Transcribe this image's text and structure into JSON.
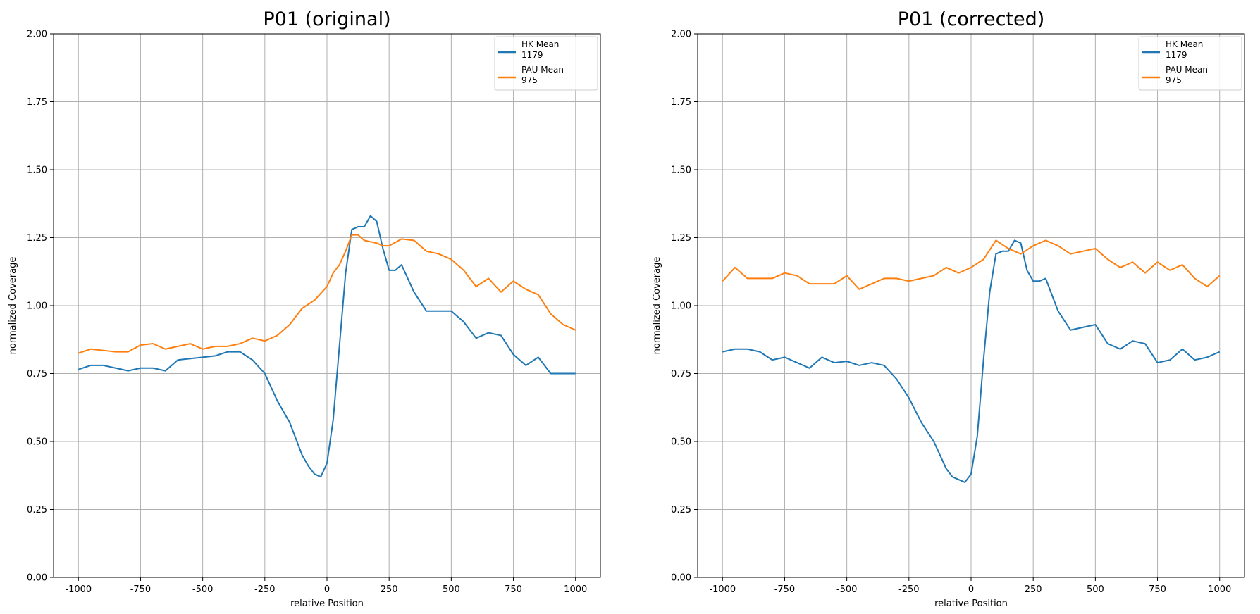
{
  "chart_data": [
    {
      "type": "line",
      "title": "P01 (original)",
      "xlabel": "relative Position",
      "ylabel": "normalized Coverage",
      "xlim": [
        -1100,
        1100
      ],
      "ylim": [
        0,
        2
      ],
      "xticks": [
        -1000,
        -750,
        -500,
        -250,
        0,
        250,
        500,
        750,
        1000
      ],
      "xtick_labels": [
        "-1000",
        "-750",
        "-500",
        "-250",
        "0",
        "250",
        "500",
        "750",
        "1000"
      ],
      "yticks": [
        0,
        0.25,
        0.5,
        0.75,
        1.0,
        1.25,
        1.5,
        1.75,
        2.0
      ],
      "ytick_labels": [
        "0.00",
        "0.25",
        "0.50",
        "0.75",
        "1.00",
        "1.25",
        "1.50",
        "1.75",
        "2.00"
      ],
      "grid": true,
      "legend_position": "top-right",
      "series": [
        {
          "name": "HK Mean",
          "count": "1179",
          "color": "#1f77b4",
          "x": [
            -1000,
            -950,
            -900,
            -850,
            -800,
            -750,
            -700,
            -650,
            -600,
            -550,
            -500,
            -450,
            -400,
            -350,
            -300,
            -250,
            -200,
            -150,
            -100,
            -75,
            -50,
            -25,
            0,
            25,
            50,
            75,
            100,
            125,
            150,
            175,
            200,
            225,
            250,
            275,
            300,
            350,
            400,
            450,
            500,
            550,
            600,
            650,
            700,
            750,
            800,
            850,
            900,
            950,
            1000
          ],
          "y": [
            0.765,
            0.78,
            0.78,
            0.77,
            0.76,
            0.77,
            0.77,
            0.76,
            0.8,
            0.805,
            0.81,
            0.815,
            0.83,
            0.83,
            0.8,
            0.75,
            0.65,
            0.57,
            0.45,
            0.41,
            0.38,
            0.37,
            0.42,
            0.58,
            0.85,
            1.12,
            1.28,
            1.29,
            1.29,
            1.33,
            1.31,
            1.21,
            1.13,
            1.13,
            1.15,
            1.05,
            0.98,
            0.98,
            0.98,
            0.94,
            0.88,
            0.9,
            0.89,
            0.82,
            0.78,
            0.81,
            0.75,
            0.75,
            0.75
          ]
        },
        {
          "name": "PAU Mean",
          "count": "975",
          "color": "#ff7f0e",
          "x": [
            -1000,
            -950,
            -900,
            -850,
            -800,
            -750,
            -700,
            -650,
            -600,
            -550,
            -500,
            -450,
            -400,
            -350,
            -300,
            -250,
            -200,
            -150,
            -100,
            -50,
            0,
            25,
            50,
            75,
            100,
            125,
            150,
            175,
            200,
            225,
            250,
            300,
            350,
            400,
            450,
            500,
            550,
            600,
            650,
            700,
            750,
            800,
            850,
            900,
            950,
            1000
          ],
          "y": [
            0.825,
            0.84,
            0.835,
            0.83,
            0.83,
            0.855,
            0.86,
            0.84,
            0.85,
            0.86,
            0.84,
            0.85,
            0.85,
            0.86,
            0.88,
            0.87,
            0.89,
            0.93,
            0.99,
            1.02,
            1.07,
            1.12,
            1.15,
            1.2,
            1.26,
            1.26,
            1.24,
            1.235,
            1.23,
            1.22,
            1.22,
            1.245,
            1.24,
            1.2,
            1.19,
            1.17,
            1.13,
            1.07,
            1.1,
            1.05,
            1.09,
            1.06,
            1.04,
            0.97,
            0.93,
            0.91
          ]
        }
      ]
    },
    {
      "type": "line",
      "title": "P01 (corrected)",
      "xlabel": "relative Position",
      "ylabel": "normalized Coverage",
      "xlim": [
        -1100,
        1100
      ],
      "ylim": [
        0,
        2
      ],
      "xticks": [
        -1000,
        -750,
        -500,
        -250,
        0,
        250,
        500,
        750,
        1000
      ],
      "xtick_labels": [
        "-1000",
        "-750",
        "-500",
        "-250",
        "0",
        "250",
        "500",
        "750",
        "1000"
      ],
      "yticks": [
        0,
        0.25,
        0.5,
        0.75,
        1.0,
        1.25,
        1.5,
        1.75,
        2.0
      ],
      "ytick_labels": [
        "0.00",
        "0.25",
        "0.50",
        "0.75",
        "1.00",
        "1.25",
        "1.50",
        "1.75",
        "2.00"
      ],
      "grid": true,
      "legend_position": "top-right",
      "series": [
        {
          "name": "HK Mean",
          "count": "1179",
          "color": "#1f77b4",
          "x": [
            -1000,
            -950,
            -900,
            -850,
            -800,
            -750,
            -700,
            -650,
            -600,
            -550,
            -500,
            -450,
            -400,
            -350,
            -300,
            -250,
            -200,
            -150,
            -100,
            -75,
            -50,
            -25,
            0,
            25,
            50,
            75,
            100,
            125,
            150,
            175,
            200,
            225,
            250,
            275,
            300,
            350,
            400,
            450,
            500,
            550,
            600,
            650,
            700,
            750,
            800,
            850,
            900,
            950,
            1000
          ],
          "y": [
            0.83,
            0.84,
            0.84,
            0.83,
            0.8,
            0.81,
            0.79,
            0.77,
            0.81,
            0.79,
            0.795,
            0.78,
            0.79,
            0.78,
            0.73,
            0.66,
            0.57,
            0.5,
            0.4,
            0.37,
            0.36,
            0.35,
            0.38,
            0.52,
            0.8,
            1.05,
            1.19,
            1.2,
            1.2,
            1.24,
            1.23,
            1.13,
            1.09,
            1.09,
            1.1,
            0.98,
            0.91,
            0.92,
            0.93,
            0.86,
            0.84,
            0.87,
            0.86,
            0.79,
            0.8,
            0.84,
            0.8,
            0.81,
            0.83
          ]
        },
        {
          "name": "PAU Mean",
          "count": "975",
          "color": "#ff7f0e",
          "x": [
            -1000,
            -950,
            -900,
            -850,
            -800,
            -750,
            -700,
            -650,
            -600,
            -550,
            -500,
            -450,
            -400,
            -350,
            -300,
            -250,
            -200,
            -150,
            -100,
            -50,
            0,
            50,
            100,
            150,
            200,
            250,
            300,
            350,
            400,
            450,
            500,
            550,
            600,
            650,
            700,
            750,
            800,
            850,
            900,
            950,
            1000
          ],
          "y": [
            1.09,
            1.14,
            1.1,
            1.1,
            1.1,
            1.12,
            1.11,
            1.08,
            1.08,
            1.08,
            1.11,
            1.06,
            1.08,
            1.1,
            1.1,
            1.09,
            1.1,
            1.11,
            1.14,
            1.12,
            1.14,
            1.17,
            1.24,
            1.21,
            1.19,
            1.22,
            1.24,
            1.22,
            1.19,
            1.2,
            1.21,
            1.17,
            1.14,
            1.16,
            1.12,
            1.16,
            1.13,
            1.15,
            1.1,
            1.07,
            1.11
          ]
        }
      ]
    }
  ]
}
